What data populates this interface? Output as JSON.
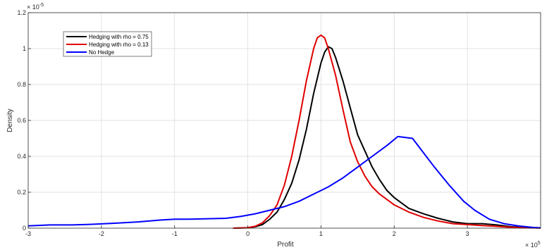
{
  "chart_data": {
    "type": "line",
    "xlabel": "Profit",
    "ylabel": "Density",
    "x_exponent": "× 10",
    "x_exponent_power": "5",
    "y_exponent": "× 10",
    "y_exponent_power": "-5",
    "xlim": [
      -3,
      4
    ],
    "ylim": [
      0,
      1.2
    ],
    "x_ticks": [
      -3,
      -2,
      -1,
      0,
      1,
      2,
      3
    ],
    "x_tick_labels": [
      "-3",
      "-2",
      "-1",
      "0",
      "1",
      "2",
      "3"
    ],
    "y_ticks": [
      0,
      0.2,
      0.4,
      0.6,
      0.8,
      1,
      1.2
    ],
    "y_tick_labels": [
      "0",
      "0.2",
      "0.4",
      "0.6",
      "0.8",
      "1",
      "1.2"
    ],
    "grid": true,
    "legend_position": "top-left",
    "series": [
      {
        "name": "Hedging with rho = 0.75",
        "color": "#000000",
        "x": [
          -0.2,
          0.0,
          0.1,
          0.2,
          0.3,
          0.4,
          0.5,
          0.6,
          0.7,
          0.8,
          0.9,
          1.0,
          1.05,
          1.1,
          1.15,
          1.2,
          1.3,
          1.4,
          1.5,
          1.6,
          1.7,
          1.8,
          1.9,
          2.0,
          2.2,
          2.4,
          2.6,
          2.8,
          3.0,
          3.2,
          3.4,
          3.6,
          3.8,
          4.0
        ],
        "y": [
          0,
          0.002,
          0.008,
          0.02,
          0.05,
          0.09,
          0.16,
          0.25,
          0.38,
          0.55,
          0.75,
          0.92,
          0.98,
          1.01,
          1.0,
          0.95,
          0.82,
          0.67,
          0.52,
          0.43,
          0.34,
          0.27,
          0.21,
          0.17,
          0.11,
          0.08,
          0.055,
          0.035,
          0.025,
          0.025,
          0.018,
          0.008,
          0.003,
          0.001
        ]
      },
      {
        "name": "Hedging with rho = 0.13",
        "color": "#e00000",
        "x": [
          -0.2,
          0.0,
          0.1,
          0.2,
          0.3,
          0.4,
          0.5,
          0.6,
          0.7,
          0.8,
          0.9,
          0.95,
          1.0,
          1.05,
          1.1,
          1.2,
          1.3,
          1.4,
          1.5,
          1.6,
          1.7,
          1.8,
          1.9,
          2.0,
          2.2,
          2.4,
          2.6,
          2.8,
          3.0,
          3.2,
          3.4,
          3.6,
          3.8,
          4.0
        ],
        "y": [
          0,
          0.003,
          0.01,
          0.03,
          0.07,
          0.13,
          0.24,
          0.4,
          0.6,
          0.82,
          1.0,
          1.06,
          1.075,
          1.06,
          1.0,
          0.85,
          0.66,
          0.48,
          0.37,
          0.29,
          0.23,
          0.19,
          0.16,
          0.13,
          0.09,
          0.06,
          0.04,
          0.025,
          0.02,
          0.015,
          0.01,
          0.005,
          0.002,
          0.001
        ]
      },
      {
        "name": "No Hedge",
        "color": "#0000ff",
        "x": [
          -3.0,
          -2.7,
          -2.4,
          -2.1,
          -1.8,
          -1.5,
          -1.2,
          -1.0,
          -0.8,
          -0.6,
          -0.3,
          -0.1,
          0.1,
          0.3,
          0.5,
          0.7,
          0.9,
          1.1,
          1.3,
          1.5,
          1.7,
          1.9,
          2.05,
          2.25,
          2.4,
          2.55,
          2.75,
          2.95,
          3.1,
          3.3,
          3.5,
          3.7,
          3.9,
          4.0
        ],
        "y": [
          0.013,
          0.018,
          0.018,
          0.022,
          0.028,
          0.035,
          0.045,
          0.05,
          0.05,
          0.052,
          0.055,
          0.065,
          0.08,
          0.1,
          0.12,
          0.15,
          0.19,
          0.23,
          0.28,
          0.34,
          0.4,
          0.46,
          0.51,
          0.5,
          0.42,
          0.34,
          0.24,
          0.15,
          0.1,
          0.05,
          0.025,
          0.012,
          0.004,
          0.002
        ]
      }
    ]
  }
}
